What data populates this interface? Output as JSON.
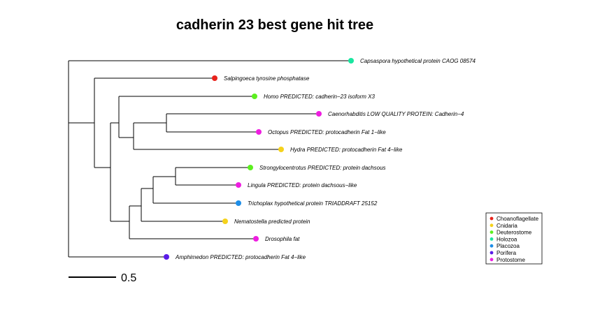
{
  "title": "cadherin 23 best gene hit tree",
  "scale_bar": {
    "value": 0.5,
    "label": "0.5"
  },
  "groups": [
    {
      "name": "Choanoflagellate",
      "color": "#e8231c"
    },
    {
      "name": "Cnidaria",
      "color": "#f5d21c"
    },
    {
      "name": "Deuterostome",
      "color": "#5cef1f"
    },
    {
      "name": "Holozoa",
      "color": "#19e6a0"
    },
    {
      "name": "Placozoa",
      "color": "#1e8ee8"
    },
    {
      "name": "Porifera",
      "color": "#5a1ce8"
    },
    {
      "name": "Protostome",
      "color": "#ee1ee0"
    }
  ],
  "tips": [
    {
      "id": "capsaspora",
      "label": "Capsaspora  hypothetical protein CAOG 08574",
      "group": "Holozoa"
    },
    {
      "id": "salpingoeca",
      "label": "Salpingoeca  tyrosine phosphatase",
      "group": "Choanoflagellate"
    },
    {
      "id": "homo",
      "label": "Homo  PREDICTED: cadherin−23 isoform X3",
      "group": "Deuterostome"
    },
    {
      "id": "caenorhabditis",
      "label": "Caenorhabditis  LOW QUALITY PROTEIN: Cadherin−4",
      "group": "Protostome"
    },
    {
      "id": "octopus",
      "label": "Octopus  PREDICTED: protocadherin Fat 1−like",
      "group": "Protostome"
    },
    {
      "id": "hydra",
      "label": "Hydra  PREDICTED: protocadherin Fat 4−like",
      "group": "Cnidaria"
    },
    {
      "id": "strongylocentrotus",
      "label": "Strongylocentrotus  PREDICTED: protein dachsous",
      "group": "Deuterostome"
    },
    {
      "id": "lingula",
      "label": "Lingula  PREDICTED: protein dachsous−like",
      "group": "Protostome"
    },
    {
      "id": "trichoplax",
      "label": "Trichoplax  hypothetical protein TRIADDRAFT 25152",
      "group": "Placozoa"
    },
    {
      "id": "nematostella",
      "label": "Nematostella  predicted protein",
      "group": "Cnidaria"
    },
    {
      "id": "drosophila",
      "label": "Drosophila  fat",
      "group": "Protostome"
    },
    {
      "id": "amphimedon",
      "label": "Amphimedon  PREDICTED: protocadherin Fat 4−like",
      "group": "Porifera"
    }
  ]
}
